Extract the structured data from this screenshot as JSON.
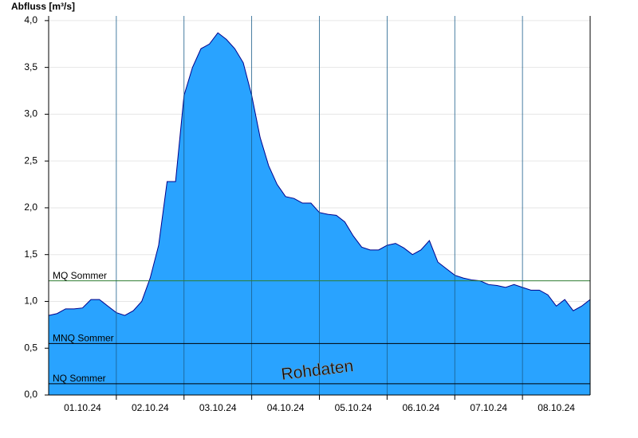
{
  "chart_data": {
    "type": "area",
    "y_label": "Abfluss [m³/s]",
    "watermark": "Rohdaten",
    "color": "#29a3ff",
    "line_color": "#00008b",
    "categories": [
      null,
      null,
      null,
      null,
      "01.10.24",
      null,
      null,
      null,
      null,
      null,
      null,
      null,
      "02.10.24",
      null,
      null,
      null,
      null,
      null,
      null,
      null,
      "03.10.24",
      null,
      null,
      null,
      null,
      null,
      null,
      null,
      "04.10.24",
      null,
      null,
      null,
      null,
      null,
      null,
      null,
      "05.10.24",
      null,
      null,
      null,
      null,
      null,
      null,
      null,
      "06.10.24",
      null,
      null,
      null,
      null,
      null,
      null,
      null,
      "07.10.24",
      null,
      null,
      null,
      null,
      null,
      null,
      null,
      "08.10.24",
      null,
      null,
      null,
      null
    ],
    "values": [
      0.85,
      0.87,
      0.92,
      0.92,
      0.93,
      1.02,
      1.02,
      0.95,
      0.88,
      0.85,
      0.9,
      1.0,
      1.25,
      1.6,
      2.28,
      2.28,
      3.2,
      3.5,
      3.7,
      3.75,
      3.87,
      3.8,
      3.7,
      3.55,
      3.2,
      2.75,
      2.45,
      2.25,
      2.12,
      2.1,
      2.05,
      2.05,
      1.95,
      1.93,
      1.92,
      1.85,
      1.7,
      1.58,
      1.55,
      1.55,
      1.6,
      1.62,
      1.57,
      1.5,
      1.55,
      1.65,
      1.42,
      1.35,
      1.28,
      1.25,
      1.23,
      1.22,
      1.18,
      1.17,
      1.15,
      1.18,
      1.15,
      1.12,
      1.12,
      1.07,
      0.95,
      1.02,
      0.9,
      0.95,
      1.02
    ],
    "ylim": [
      0,
      4.05
    ],
    "yticks": [
      {
        "value": 0,
        "label": "0,0"
      },
      {
        "value": 0.5,
        "label": "0,5"
      },
      {
        "value": 1,
        "label": "1,0"
      },
      {
        "value": 1.5,
        "label": "1,5"
      },
      {
        "value": 2,
        "label": "2,0"
      },
      {
        "value": 2.5,
        "label": "2,5"
      },
      {
        "value": 3,
        "label": "3,0"
      },
      {
        "value": 3.5,
        "label": "3,5"
      },
      {
        "value": 4,
        "label": "4,0"
      }
    ],
    "grid": true,
    "reference_lines": [
      {
        "label": "MQ Sommer",
        "value": 1.22,
        "color": "#2e7d32"
      },
      {
        "label": "MNQ Sommer",
        "value": 0.55,
        "color": "#000000"
      },
      {
        "label": "NQ Sommer",
        "value": 0.12,
        "color": "#000000"
      }
    ]
  }
}
